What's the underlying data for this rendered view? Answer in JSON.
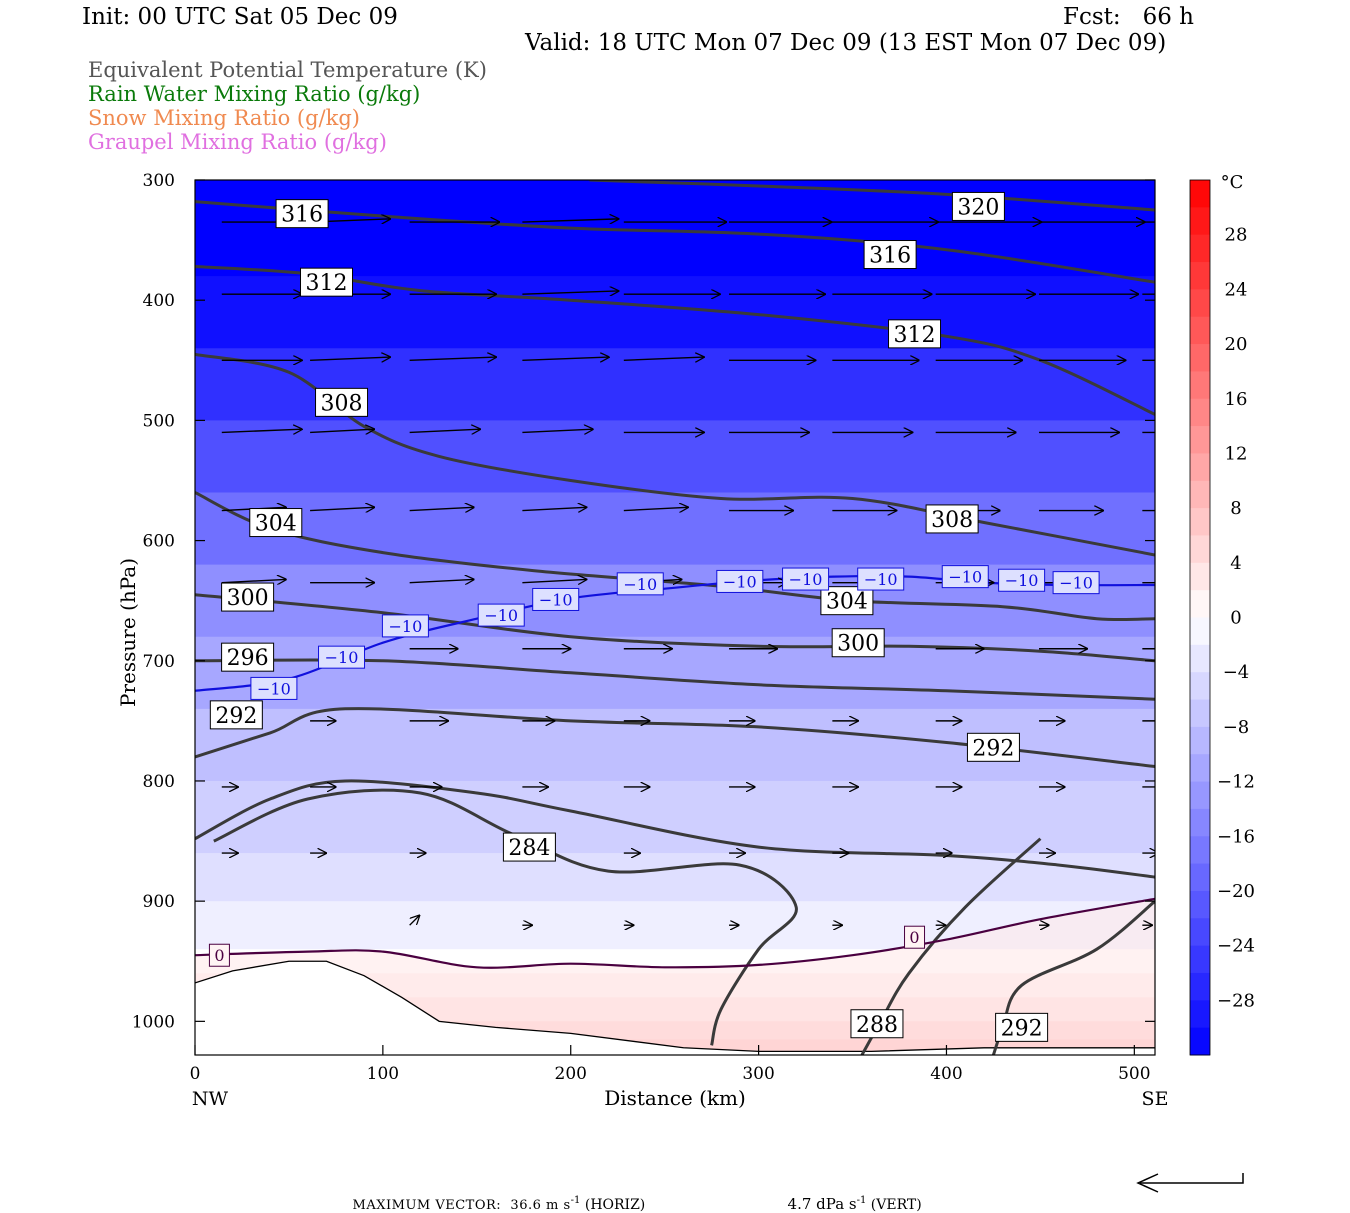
{
  "header": {
    "init": "Init: 00 UTC Sat 05 Dec 09",
    "fcst": "Fcst:   66 h",
    "valid": "Valid: 18 UTC Mon 07 Dec 09 (13 EST Mon 07 Dec 09)"
  },
  "legend": [
    {
      "text": "Equivalent Potential Temperature (K)",
      "color": "#555555"
    },
    {
      "text": "Rain Water Mixing Ratio (g/kg)",
      "color": "#0a7a0a"
    },
    {
      "text": "Snow Mixing Ratio (g/kg)",
      "color": "#f08a50"
    },
    {
      "text": "Graupel Mixing Ratio (g/kg)",
      "color": "#e070e0"
    }
  ],
  "footer": {
    "max_vector": "MAXIMUM VECTOR:  36.6 m s",
    "horiz": " (HORIZ)",
    "vert_val": "4.7 dPa s",
    "vert": " (VERT)",
    "sup": "-1"
  },
  "chart_data": {
    "type": "contour",
    "xlabel": "Distance (km)",
    "ylabel": "Pressure (hPa)",
    "xlim": [
      0,
      511
    ],
    "ylim": [
      1028,
      300
    ],
    "x_ticks": [
      0,
      100,
      200,
      300,
      400,
      500
    ],
    "y_ticks": [
      300,
      400,
      500,
      600,
      700,
      800,
      900,
      1000
    ],
    "x_end_labels": {
      "left": "NW",
      "right": "SE"
    },
    "colorbar": {
      "unit": "°C",
      "ticks": [
        "28",
        "24",
        "20",
        "16",
        "12",
        "8",
        "4",
        "0",
        "−4",
        "−8",
        "−12",
        "−16",
        "−20",
        "−24",
        "−28"
      ],
      "tick_values": [
        28,
        24,
        20,
        16,
        12,
        8,
        4,
        0,
        -4,
        -8,
        -12,
        -16,
        -20,
        -24,
        -28
      ],
      "min": -32,
      "max": 32,
      "step": 2,
      "cold_color": "#0000ff",
      "warm_color": "#ff0000",
      "zero_color": "#ffffff"
    },
    "theta_e_contours": [
      {
        "label": "320",
        "points": [
          [
            210,
            300
          ],
          [
            300,
            305
          ],
          [
            400,
            312
          ],
          [
            511,
            325
          ]
        ],
        "labels_at": [
          [
            417,
            322
          ]
        ]
      },
      {
        "label": "316",
        "points": [
          [
            0,
            318
          ],
          [
            100,
            330
          ],
          [
            200,
            340
          ],
          [
            300,
            345
          ],
          [
            400,
            358
          ],
          [
            511,
            385
          ]
        ],
        "labels_at": [
          [
            57,
            328
          ],
          [
            370,
            362
          ]
        ]
      },
      {
        "label": "312",
        "points": [
          [
            0,
            372
          ],
          [
            60,
            378
          ],
          [
            120,
            392
          ],
          [
            200,
            400
          ],
          [
            300,
            412
          ],
          [
            400,
            430
          ],
          [
            450,
            450
          ],
          [
            511,
            495
          ]
        ],
        "labels_at": [
          [
            70,
            385
          ],
          [
            383,
            428
          ]
        ]
      },
      {
        "label": "308",
        "points": [
          [
            0,
            445
          ],
          [
            50,
            460
          ],
          [
            90,
            505
          ],
          [
            130,
            530
          ],
          [
            200,
            550
          ],
          [
            280,
            565
          ],
          [
            350,
            565
          ],
          [
            420,
            585
          ],
          [
            511,
            612
          ]
        ],
        "labels_at": [
          [
            78,
            485
          ],
          [
            403,
            582
          ]
        ]
      },
      {
        "label": "304",
        "points": [
          [
            0,
            560
          ],
          [
            40,
            590
          ],
          [
            100,
            610
          ],
          [
            180,
            625
          ],
          [
            280,
            638
          ],
          [
            350,
            650
          ],
          [
            430,
            655
          ],
          [
            480,
            665
          ],
          [
            511,
            665
          ]
        ],
        "labels_at": [
          [
            43,
            585
          ],
          [
            347,
            650
          ]
        ]
      },
      {
        "label": "300",
        "points": [
          [
            0,
            645
          ],
          [
            100,
            660
          ],
          [
            200,
            680
          ],
          [
            300,
            688
          ],
          [
            380,
            688
          ],
          [
            450,
            692
          ],
          [
            511,
            700
          ]
        ],
        "labels_at": [
          [
            28,
            647
          ],
          [
            353,
            685
          ]
        ]
      },
      {
        "label": "296",
        "points": [
          [
            0,
            700
          ],
          [
            100,
            700
          ],
          [
            200,
            710
          ],
          [
            300,
            720
          ],
          [
            400,
            725
          ],
          [
            511,
            732
          ]
        ],
        "labels_at": [
          [
            28,
            697
          ]
        ]
      },
      {
        "label": "292",
        "points": [
          [
            0,
            780
          ],
          [
            40,
            760
          ],
          [
            80,
            740
          ],
          [
            200,
            750
          ],
          [
            300,
            755
          ],
          [
            400,
            768
          ],
          [
            511,
            788
          ]
        ],
        "labels_at": [
          [
            22,
            745
          ],
          [
            425,
            772
          ]
        ]
      },
      {
        "label": "288",
        "points": [
          [
            0,
            848
          ],
          [
            40,
            815
          ],
          [
            80,
            800
          ],
          [
            150,
            810
          ],
          [
            200,
            825
          ],
          [
            300,
            855
          ],
          [
            400,
            862
          ],
          [
            460,
            870
          ],
          [
            511,
            880
          ]
        ],
        "labels_at": []
      },
      {
        "label": "284",
        "points": [
          [
            10,
            850
          ],
          [
            60,
            815
          ],
          [
            120,
            810
          ],
          [
            170,
            845
          ],
          [
            220,
            875
          ],
          [
            290,
            870
          ],
          [
            320,
            905
          ],
          [
            300,
            940
          ],
          [
            280,
            990
          ],
          [
            275,
            1020
          ]
        ],
        "labels_at": [
          [
            178,
            855
          ]
        ]
      },
      {
        "label": "288",
        "points": [
          [
            450,
            848
          ],
          [
            410,
            905
          ],
          [
            380,
            960
          ],
          [
            365,
            1000
          ],
          [
            355,
            1028
          ]
        ],
        "labels_at": [
          [
            363,
            1002
          ]
        ]
      },
      {
        "label": "292",
        "points": [
          [
            511,
            900
          ],
          [
            480,
            940
          ],
          [
            440,
            970
          ],
          [
            430,
            1005
          ],
          [
            425,
            1028
          ]
        ],
        "labels_at": [
          [
            440,
            1005
          ]
        ]
      }
    ],
    "freezing_contour": {
      "label": "0",
      "points": [
        [
          0,
          945
        ],
        [
          60,
          942
        ],
        [
          100,
          942
        ],
        [
          150,
          955
        ],
        [
          200,
          952
        ],
        [
          250,
          955
        ],
        [
          300,
          953
        ],
        [
          350,
          945
        ],
        [
          400,
          932
        ],
        [
          450,
          915
        ],
        [
          511,
          898
        ]
      ],
      "labels_at": [
        [
          13,
          945
        ],
        [
          383,
          930
        ]
      ]
    },
    "minus10_contour": {
      "label": "−10",
      "points": [
        [
          0,
          725
        ],
        [
          50,
          715
        ],
        [
          100,
          685
        ],
        [
          150,
          665
        ],
        [
          200,
          648
        ],
        [
          250,
          640
        ],
        [
          300,
          633
        ],
        [
          340,
          630
        ],
        [
          380,
          630
        ],
        [
          420,
          635
        ],
        [
          460,
          637
        ],
        [
          511,
          637
        ]
      ],
      "labels_at": [
        [
          42,
          723
        ],
        [
          78,
          697
        ],
        [
          112,
          671
        ],
        [
          163,
          662
        ],
        [
          192,
          649
        ],
        [
          237,
          636
        ],
        [
          290,
          634
        ],
        [
          325,
          632
        ],
        [
          365,
          632
        ],
        [
          410,
          630
        ],
        [
          440,
          633
        ],
        [
          469,
          635
        ]
      ]
    },
    "terrain": [
      [
        0,
        968
      ],
      [
        20,
        958
      ],
      [
        50,
        950
      ],
      [
        70,
        950
      ],
      [
        90,
        962
      ],
      [
        110,
        980
      ],
      [
        130,
        1000
      ],
      [
        160,
        1005
      ],
      [
        200,
        1010
      ],
      [
        260,
        1022
      ],
      [
        300,
        1025
      ],
      [
        360,
        1025
      ],
      [
        420,
        1022
      ],
      [
        511,
        1022
      ]
    ],
    "wind_levels": [
      {
        "p": 335,
        "x": [
          10,
          57,
          110,
          170,
          224,
          280,
          335,
          390,
          445,
          500
        ],
        "u": [
          30,
          25,
          28,
          30,
          32,
          32,
          33,
          33,
          33,
          33
        ],
        "v": [
          0,
          1,
          0,
          1,
          0,
          0,
          0,
          0,
          0,
          0
        ]
      },
      {
        "p": 395,
        "x": [
          10,
          57,
          110,
          170,
          224,
          280,
          335,
          390,
          445,
          500
        ],
        "u": [
          25,
          25,
          27,
          30,
          30,
          30,
          31,
          31,
          31,
          30
        ],
        "v": [
          0,
          0,
          0,
          1,
          0,
          0,
          0,
          0,
          0,
          0
        ]
      },
      {
        "p": 450,
        "x": [
          10,
          57,
          110,
          170,
          224,
          280,
          335,
          390,
          445,
          500
        ],
        "u": [
          25,
          25,
          27,
          27,
          25,
          27,
          27,
          27,
          27,
          27
        ],
        "v": [
          0,
          1,
          1,
          1,
          1,
          0,
          0,
          0,
          0,
          0
        ]
      },
      {
        "p": 510,
        "x": [
          10,
          57,
          110,
          170,
          224,
          280,
          335,
          390,
          445,
          500
        ],
        "u": [
          25,
          20,
          22,
          22,
          25,
          25,
          25,
          25,
          25,
          25
        ],
        "v": [
          1,
          1,
          1,
          1,
          0,
          0,
          0,
          0,
          0,
          0
        ]
      },
      {
        "p": 575,
        "x": [
          10,
          57,
          110,
          170,
          224,
          280,
          335,
          390,
          445,
          500
        ],
        "u": [
          20,
          20,
          20,
          20,
          20,
          20,
          20,
          20,
          20,
          20
        ],
        "v": [
          1,
          1,
          1,
          1,
          1,
          0,
          0,
          0,
          0,
          0
        ]
      },
      {
        "p": 635,
        "x": [
          10,
          57,
          110,
          170,
          224,
          280,
          335,
          390,
          445,
          500
        ],
        "u": [
          20,
          20,
          20,
          20,
          18,
          18,
          18,
          18,
          18,
          18
        ],
        "v": [
          1,
          0,
          1,
          1,
          1,
          0,
          0,
          0,
          0,
          0
        ]
      },
      {
        "p": 690,
        "x": [
          10,
          57,
          110,
          170,
          224,
          280,
          335,
          390,
          445,
          500
        ],
        "u": [
          0,
          0,
          15,
          15,
          15,
          15,
          15,
          15,
          15,
          15
        ],
        "v": [
          0,
          0,
          0,
          0,
          0,
          0,
          0,
          0,
          0,
          0
        ]
      },
      {
        "p": 750,
        "x": [
          10,
          57,
          110,
          170,
          224,
          280,
          335,
          390,
          445,
          500
        ],
        "u": [
          5,
          8,
          12,
          10,
          8,
          8,
          8,
          8,
          8,
          8
        ],
        "v": [
          0,
          0,
          0,
          0,
          0,
          0,
          0,
          0,
          0,
          0
        ]
      },
      {
        "p": 805,
        "x": [
          10,
          57,
          110,
          170,
          224,
          280,
          335,
          390,
          445,
          500
        ],
        "u": [
          5,
          8,
          10,
          8,
          8,
          8,
          8,
          8,
          8,
          8
        ],
        "v": [
          0,
          0,
          0,
          0,
          0,
          0,
          0,
          0,
          0,
          0
        ]
      },
      {
        "p": 860,
        "x": [
          10,
          57,
          110,
          170,
          224,
          280,
          335,
          390,
          445,
          500
        ],
        "u": [
          5,
          5,
          5,
          5,
          5,
          5,
          5,
          5,
          5,
          5
        ],
        "v": [
          0,
          0,
          0,
          0,
          0,
          0,
          0,
          0,
          0,
          0
        ]
      },
      {
        "p": 920,
        "x": [
          10,
          57,
          110,
          170,
          224,
          280,
          335,
          390,
          445,
          500
        ],
        "u": [
          0,
          0,
          3,
          3,
          3,
          3,
          3,
          3,
          3,
          3
        ],
        "v": [
          0,
          0,
          3,
          0,
          0,
          0,
          0,
          0,
          0,
          0
        ]
      }
    ],
    "grid": false
  }
}
